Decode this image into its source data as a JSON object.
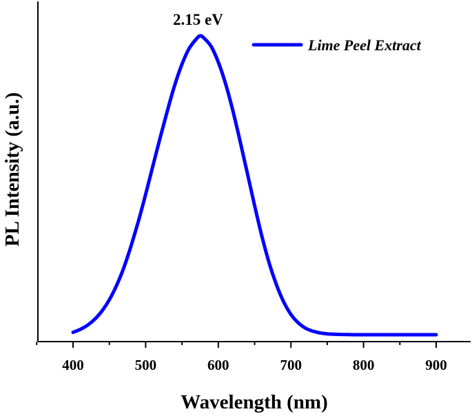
{
  "chart_data": {
    "type": "line",
    "title": "",
    "xlabel": "Wavelength (nm)",
    "ylabel": "PL Intensity (a.u.)",
    "xlim": [
      350,
      900
    ],
    "ylim": [
      0,
      1.02
    ],
    "xticks": [
      400,
      500,
      600,
      700,
      800,
      900
    ],
    "yticks_shown": false,
    "grid": false,
    "legend": "top-right",
    "annotations": [
      {
        "text": "2.15 eV",
        "x": 575,
        "y": 1.0
      }
    ],
    "series": [
      {
        "name": "Lime Peel Extract",
        "color": "#0000ff",
        "x": [
          400,
          410,
          420,
          430,
          440,
          450,
          460,
          470,
          480,
          490,
          500,
          510,
          520,
          530,
          540,
          550,
          560,
          570,
          575,
          580,
          590,
          600,
          610,
          620,
          630,
          640,
          650,
          660,
          670,
          680,
          690,
          700,
          710,
          720,
          730,
          740,
          750,
          760,
          770,
          780,
          800,
          850,
          900
        ],
        "y": [
          0.008,
          0.018,
          0.032,
          0.052,
          0.08,
          0.117,
          0.165,
          0.225,
          0.298,
          0.38,
          0.47,
          0.565,
          0.66,
          0.75,
          0.835,
          0.905,
          0.958,
          0.99,
          1.0,
          0.993,
          0.965,
          0.912,
          0.84,
          0.75,
          0.648,
          0.54,
          0.432,
          0.33,
          0.24,
          0.168,
          0.11,
          0.068,
          0.04,
          0.022,
          0.012,
          0.006,
          0.003,
          0.0015,
          0.001,
          0.0005,
          0.0,
          0.0,
          0.0
        ]
      }
    ]
  }
}
